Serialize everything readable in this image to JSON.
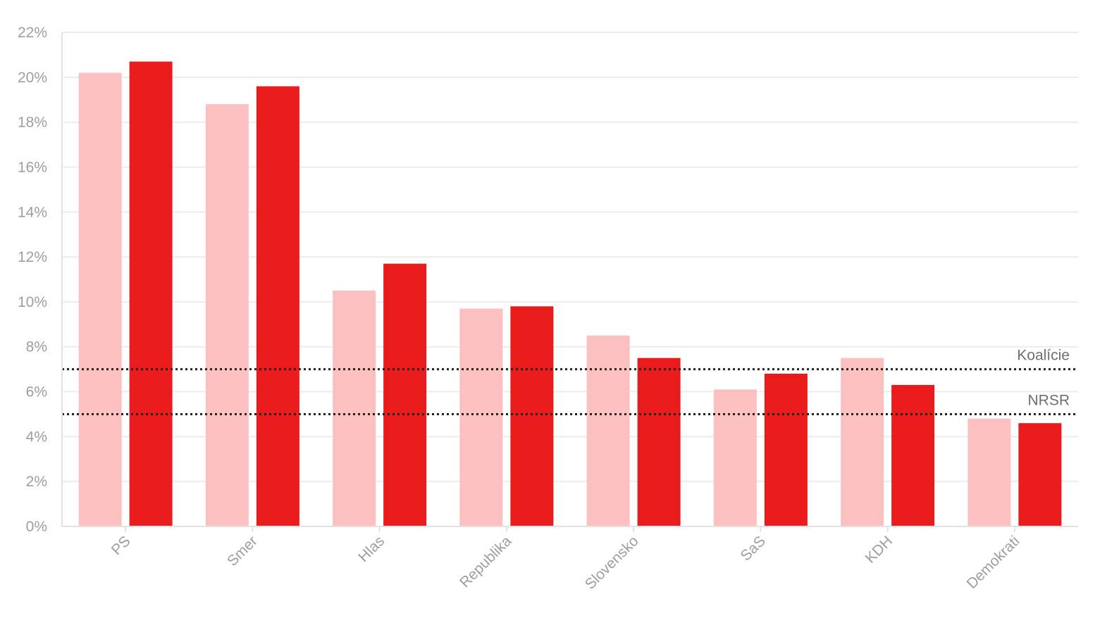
{
  "chart_data": {
    "type": "bar",
    "categories": [
      "PS",
      "Smer",
      "Hlas",
      "Republika",
      "Slovensko",
      "SaS",
      "KDH",
      "Demokrati"
    ],
    "series": [
      {
        "color": "#fcc0c1",
        "values": [
          20.2,
          18.8,
          10.5,
          9.7,
          8.5,
          6.1,
          7.5,
          4.8
        ]
      },
      {
        "color": "#ea1b1b",
        "values": [
          20.7,
          19.6,
          11.7,
          9.8,
          7.5,
          6.8,
          6.3,
          4.6
        ]
      }
    ],
    "ylim": [
      0,
      22
    ],
    "yticks": [
      0,
      2,
      4,
      6,
      8,
      10,
      12,
      14,
      16,
      18,
      20,
      22
    ],
    "ytick_suffix": "%",
    "grid": true,
    "reference_lines": [
      {
        "value": 7,
        "label": "Koalície"
      },
      {
        "value": 5,
        "label": "NRSR"
      }
    ],
    "xlabel": "",
    "ylabel": "",
    "title": ""
  }
}
